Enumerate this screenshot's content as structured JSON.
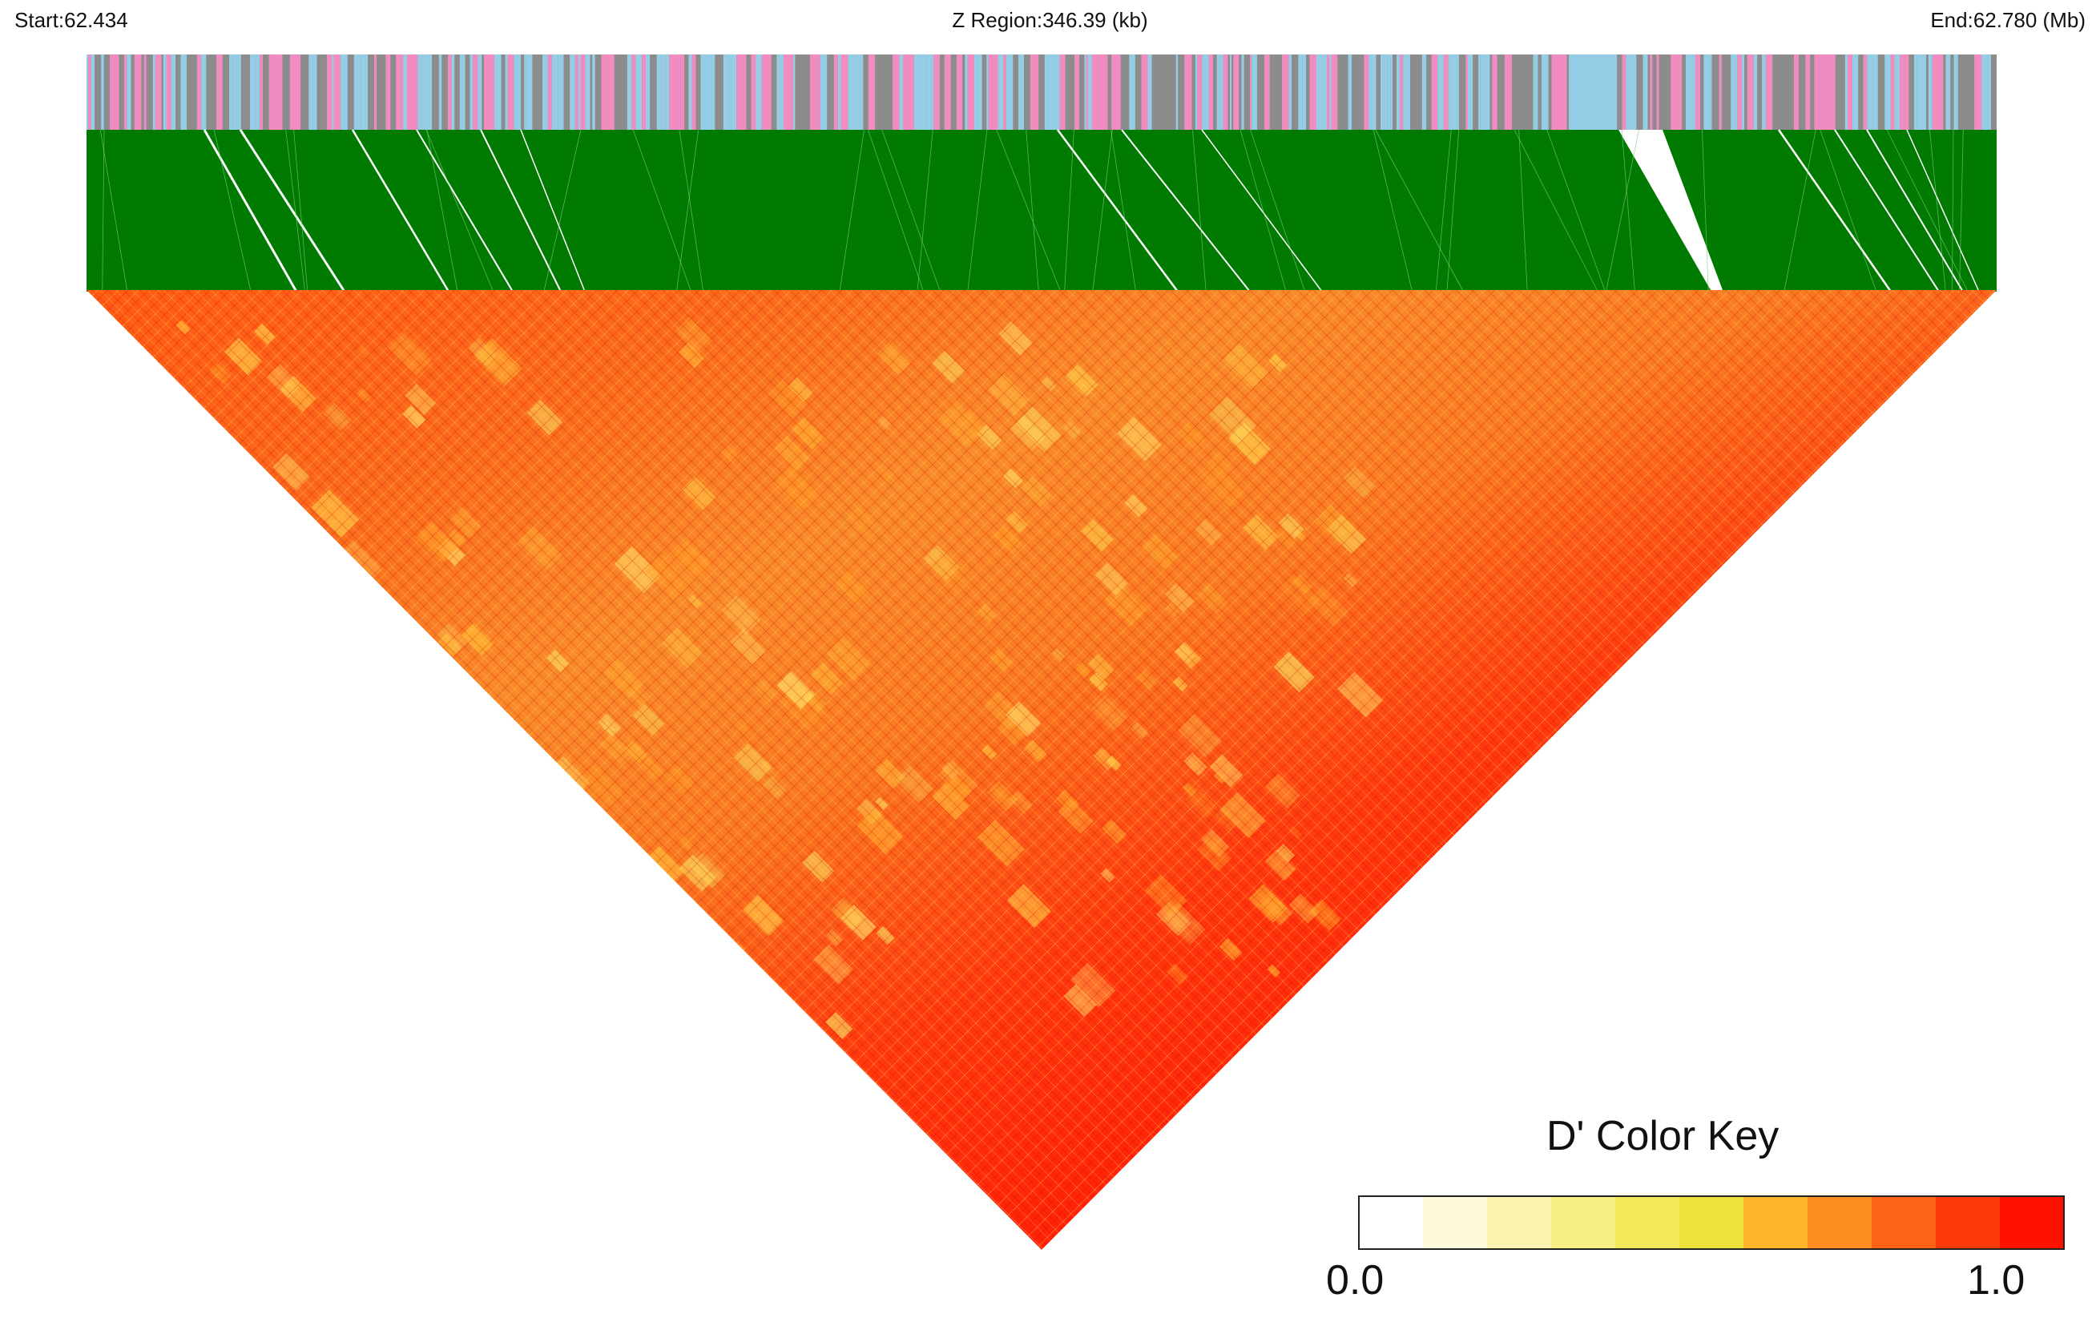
{
  "header": {
    "start_label": "Start:62.434",
    "region_label": "Z Region:346.39 (kb)",
    "end_label": "End:62.780 (Mb)"
  },
  "chart_data": {
    "type": "heatmap",
    "title": "",
    "region_start_mb": 62.434,
    "region_end_mb": 62.78,
    "region_length_kb": 346.39,
    "matrix_shape": "triangle-pointing-down",
    "statistic": "D'",
    "color_key": {
      "title": "D' Color Key",
      "min_label": "0.0",
      "max_label": "1.0",
      "range": [
        0.0,
        1.0
      ],
      "colors": [
        "#ffffff",
        "#fefadc",
        "#fbf3b0",
        "#f7ee85",
        "#f2e85a",
        "#eee23a",
        "#fcb52b",
        "#fd8c1e",
        "#fe6315",
        "#fe390c",
        "#ff1100"
      ]
    },
    "annotation_track": {
      "colors": {
        "pink": "#f08cc0",
        "gray": "#8c8c8c",
        "blue": "#96cde6"
      }
    },
    "connector_color": "#007a00"
  }
}
